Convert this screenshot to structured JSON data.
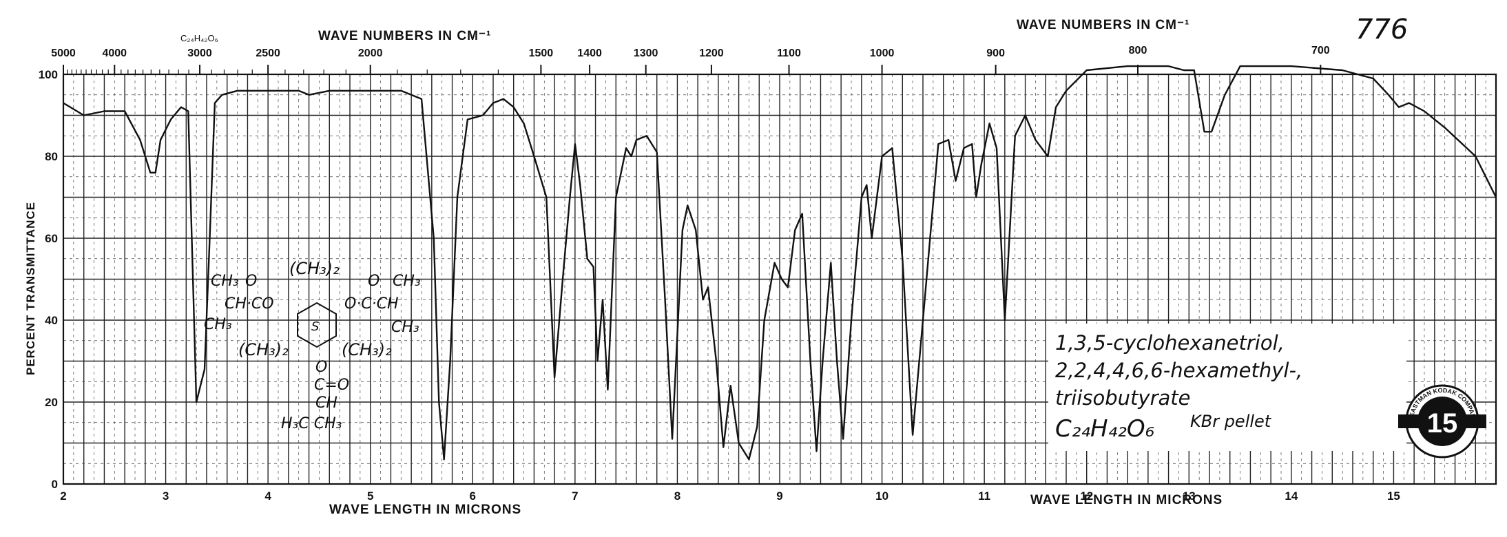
{
  "chart_data": {
    "type": "line",
    "title": "",
    "spectrum_number": "776",
    "molecular_formula_header": "C₂₄H₄₂O₆",
    "xlabel": "WAVE LENGTH IN MICRONS",
    "xlabel_right": "WAVE LENGTH IN MICRONS",
    "x2label": "WAVE NUMBERS IN CM⁻¹",
    "x2label_right": "WAVE NUMBERS IN CM⁻¹",
    "ylabel": "PERCENT TRANSMITTANCE",
    "xlim": [
      2,
      16
    ],
    "ylim": [
      0,
      100
    ],
    "grid": true,
    "x_ticks": [
      "2",
      "3",
      "4",
      "5",
      "6",
      "7",
      "8",
      "9",
      "10",
      "11",
      "12",
      "13",
      "14",
      "15"
    ],
    "y_ticks": [
      "0",
      "20",
      "40",
      "60",
      "80",
      "100"
    ],
    "wavenumber_ticks": [
      {
        "label": "5000",
        "um": 2.0
      },
      {
        "label": "4000",
        "um": 2.5
      },
      {
        "label": "3000",
        "um": 3.333
      },
      {
        "label": "2500",
        "um": 4.0
      },
      {
        "label": "2000",
        "um": 5.0
      },
      {
        "label": "1500",
        "um": 6.667
      },
      {
        "label": "1400",
        "um": 7.143
      },
      {
        "label": "1300",
        "um": 7.692
      },
      {
        "label": "1200",
        "um": 8.333
      },
      {
        "label": "1100",
        "um": 9.091
      },
      {
        "label": "1000",
        "um": 10.0
      },
      {
        "label": "900",
        "um": 11.111
      },
      {
        "label": "800",
        "um": 12.5
      },
      {
        "label": "700",
        "um": 14.286
      }
    ],
    "series": [
      {
        "x": [
          2.0,
          2.2,
          2.4,
          2.6,
          2.75,
          2.85,
          2.9,
          2.95,
          3.05,
          3.15,
          3.22,
          3.3,
          3.38,
          3.43,
          3.48,
          3.55,
          3.7,
          4.0,
          4.3,
          4.4,
          4.6,
          5.0,
          5.3,
          5.5,
          5.62,
          5.67,
          5.72,
          5.78,
          5.85,
          5.95,
          6.1,
          6.2,
          6.3,
          6.4,
          6.5,
          6.6,
          6.72,
          6.8,
          6.88,
          6.95,
          7.0,
          7.05,
          7.12,
          7.18,
          7.22,
          7.27,
          7.32,
          7.4,
          7.5,
          7.55,
          7.6,
          7.7,
          7.8,
          7.88,
          7.95,
          8.05,
          8.1,
          8.18,
          8.25,
          8.3,
          8.38,
          8.45,
          8.52,
          8.6,
          8.7,
          8.78,
          8.85,
          8.95,
          9.02,
          9.08,
          9.15,
          9.22,
          9.3,
          9.36,
          9.42,
          9.5,
          9.56,
          9.62,
          9.7,
          9.8,
          9.85,
          9.9,
          10.0,
          10.1,
          10.2,
          10.3,
          10.4,
          10.55,
          10.65,
          10.72,
          10.8,
          10.88,
          10.92,
          10.97,
          11.05,
          11.12,
          11.2,
          11.3,
          11.4,
          11.5,
          11.62,
          11.7,
          11.8,
          12.0,
          12.4,
          12.8,
          12.95,
          13.05,
          13.15,
          13.22,
          13.35,
          13.5,
          14.0,
          14.5,
          14.8,
          14.95,
          15.05,
          15.15,
          15.3,
          15.5,
          15.8,
          16.0
        ],
        "y": [
          93,
          90,
          91,
          91,
          84,
          76,
          76,
          84,
          89,
          92,
          91,
          20,
          28,
          60,
          93,
          95,
          96,
          96,
          96,
          95,
          96,
          96,
          96,
          94,
          60,
          20,
          6,
          30,
          70,
          89,
          90,
          93,
          94,
          92,
          88,
          80,
          70,
          26,
          50,
          70,
          83,
          73,
          55,
          53,
          30,
          45,
          23,
          70,
          82,
          80,
          84,
          85,
          81,
          45,
          11,
          62,
          68,
          62,
          45,
          48,
          30,
          9,
          24,
          10,
          6,
          14,
          40,
          54,
          50,
          48,
          62,
          66,
          30,
          8,
          30,
          54,
          30,
          11,
          40,
          70,
          73,
          60,
          80,
          82,
          55,
          12,
          40,
          83,
          84,
          74,
          82,
          83,
          70,
          78,
          88,
          82,
          40,
          85,
          90,
          84,
          80,
          92,
          96,
          101,
          102,
          102,
          101,
          101,
          86,
          86,
          95,
          102,
          102,
          101,
          99,
          95,
          92,
          93,
          91,
          87,
          80,
          70
        ]
      }
    ]
  },
  "annotation": {
    "line1": "1,3,5-cyclohexanetriol,",
    "line2": "2,2,4,4,6,6-hexamethyl-,",
    "line3": "triisobutyrate",
    "formula": "C₂₄H₄₂O₆",
    "medium": "KBr pellet"
  },
  "structure": {
    "top_left_ch3": "CH₃",
    "top_left_o": "O",
    "left_group": "CH·CO",
    "bottom_left_ch3": "CH₃",
    "top_gem": "(CH₃)₂",
    "top_right_o": "O",
    "top_right_ch3": "CH₃",
    "right_group": "O·C·CH",
    "bottom_right_ch3": "CH₃",
    "ring_label": "S",
    "left_gem": "(CH₃)₂",
    "right_gem": "(CH₃)₂",
    "bottom_o": "O",
    "bottom_co": "C=O",
    "bottom_ch": "CH",
    "bottom_ch3s": "H₃C CH₃"
  },
  "logo": {
    "text": "15",
    "ring": "EASTMAN KODAK COMPANY"
  }
}
